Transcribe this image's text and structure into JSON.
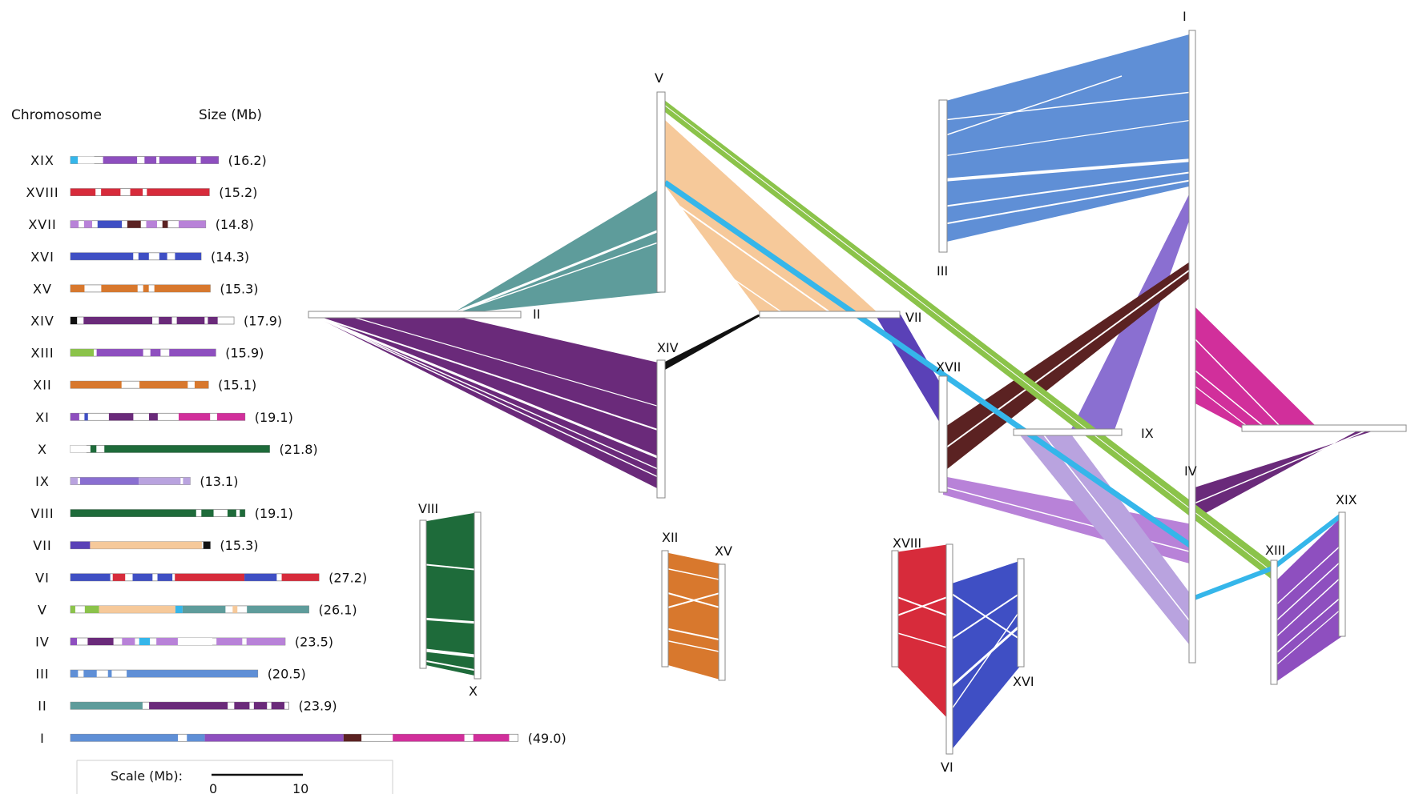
{
  "legend": {
    "header_chromosome": "Chromosome",
    "header_size": "Size (Mb)",
    "scale_label": "Scale (Mb):",
    "scale_min": "0",
    "scale_max": "10",
    "rows": [
      {
        "name": "XIX",
        "size": "(16.2)",
        "mb": 16.2,
        "segments": [
          [
            "#35b6ea",
            0,
            0.05
          ],
          [
            "#ffffff",
            0.05,
            0.16
          ],
          [
            "#8e4fbf",
            0.22,
            0.45
          ],
          [
            "#8e4fbf",
            0.5,
            0.58
          ],
          [
            "#8e4fbf",
            0.6,
            0.85
          ],
          [
            "#8e4fbf",
            0.88,
            1.0
          ]
        ]
      },
      {
        "name": "XVIII",
        "size": "(15.2)",
        "mb": 15.2,
        "segments": [
          [
            "#d72b3b",
            0,
            0.18
          ],
          [
            "#d72b3b",
            0.22,
            0.36
          ],
          [
            "#d72b3b",
            0.43,
            0.52
          ],
          [
            "#d72b3b",
            0.55,
            1.0
          ]
        ]
      },
      {
        "name": "XVII",
        "size": "(14.8)",
        "mb": 14.8,
        "segments": [
          [
            "#b882d8",
            0,
            0.06
          ],
          [
            "#b882d8",
            0.1,
            0.16
          ],
          [
            "#3f4fc4",
            0.2,
            0.38
          ],
          [
            "#5b2222",
            0.42,
            0.52
          ],
          [
            "#b882d8",
            0.56,
            0.64
          ],
          [
            "#5b2222",
            0.68,
            0.72
          ],
          [
            "#b882d8",
            0.8,
            1.0
          ]
        ]
      },
      {
        "name": "XVI",
        "size": "(14.3)",
        "mb": 14.3,
        "segments": [
          [
            "#3f4fc4",
            0,
            0.48
          ],
          [
            "#3f4fc4",
            0.52,
            0.6
          ],
          [
            "#3f4fc4",
            0.68,
            0.74
          ],
          [
            "#3f4fc4",
            0.8,
            1.0
          ]
        ]
      },
      {
        "name": "XV",
        "size": "(15.3)",
        "mb": 15.3,
        "segments": [
          [
            "#d8782d",
            0,
            0.1
          ],
          [
            "#d8782d",
            0.22,
            0.48
          ],
          [
            "#d8782d",
            0.52,
            0.56
          ],
          [
            "#d8782d",
            0.6,
            1.0
          ]
        ]
      },
      {
        "name": "XIV",
        "size": "(17.9)",
        "mb": 17.9,
        "segments": [
          [
            "#111111",
            0,
            0.04
          ],
          [
            "#6a2a7a",
            0.08,
            0.5
          ],
          [
            "#6a2a7a",
            0.54,
            0.62
          ],
          [
            "#6a2a7a",
            0.65,
            0.82
          ],
          [
            "#6a2a7a",
            0.84,
            0.9
          ]
        ]
      },
      {
        "name": "XIII",
        "size": "(15.9)",
        "mb": 15.9,
        "segments": [
          [
            "#8bc34a",
            0,
            0.16
          ],
          [
            "#8e4fbf",
            0.18,
            0.5
          ],
          [
            "#8e4fbf",
            0.55,
            0.62
          ],
          [
            "#8e4fbf",
            0.68,
            1.0
          ]
        ]
      },
      {
        "name": "XII",
        "size": "(15.1)",
        "mb": 15.1,
        "segments": [
          [
            "#d8782d",
            0,
            0.37
          ],
          [
            "#d8782d",
            0.5,
            0.85
          ],
          [
            "#d8782d",
            0.9,
            1.0
          ]
        ]
      },
      {
        "name": "XI",
        "size": "(19.1)",
        "mb": 19.1,
        "segments": [
          [
            "#8e4fbf",
            0,
            0.05
          ],
          [
            "#3f4fc4",
            0.08,
            0.1
          ],
          [
            "#6a2a7a",
            0.22,
            0.36
          ],
          [
            "#6a2a7a",
            0.45,
            0.5
          ],
          [
            "#d12f9b",
            0.62,
            0.8
          ],
          [
            "#d12f9b",
            0.84,
            1.0
          ]
        ]
      },
      {
        "name": "X",
        "size": "(21.8)",
        "mb": 21.8,
        "segments": [
          [
            "#ffffff",
            0,
            0.08
          ],
          [
            "#1e6b3a",
            0.1,
            0.13
          ],
          [
            "#1e6b3a",
            0.17,
            1.0
          ]
        ]
      },
      {
        "name": "IX",
        "size": "(13.1)",
        "mb": 13.1,
        "segments": [
          [
            "#b9a3df",
            0,
            0.06
          ],
          [
            "#8a6fd1",
            0.08,
            0.57
          ],
          [
            "#b9a3df",
            0.57,
            0.92
          ],
          [
            "#b9a3df",
            0.94,
            1.0
          ]
        ]
      },
      {
        "name": "VIII",
        "size": "(19.1)",
        "mb": 19.1,
        "segments": [
          [
            "#1e6b3a",
            0,
            0.72
          ],
          [
            "#1e6b3a",
            0.75,
            0.82
          ],
          [
            "#1e6b3a",
            0.9,
            0.95
          ],
          [
            "#1e6b3a",
            0.97,
            1.0
          ]
        ]
      },
      {
        "name": "VII",
        "size": "(15.3)",
        "mb": 15.3,
        "segments": [
          [
            "#5a41b7",
            0,
            0.14
          ],
          [
            "#f6c99a",
            0.14,
            0.94
          ],
          [
            "#111111",
            0.95,
            1.0
          ]
        ]
      },
      {
        "name": "VI",
        "size": "(27.2)",
        "mb": 27.2,
        "segments": [
          [
            "#3f4fc4",
            0,
            0.16
          ],
          [
            "#d72b3b",
            0.17,
            0.22
          ],
          [
            "#3f4fc4",
            0.25,
            0.33
          ],
          [
            "#3f4fc4",
            0.35,
            0.41
          ],
          [
            "#d72b3b",
            0.42,
            0.7
          ],
          [
            "#3f4fc4",
            0.7,
            0.83
          ],
          [
            "#d72b3b",
            0.85,
            1.0
          ]
        ]
      },
      {
        "name": "V",
        "size": "(26.1)",
        "mb": 26.1,
        "segments": [
          [
            "#8bc34a",
            0,
            0.02
          ],
          [
            "#8bc34a",
            0.06,
            0.12
          ],
          [
            "#f6c99a",
            0.12,
            0.44
          ],
          [
            "#35b6ea",
            0.44,
            0.47
          ],
          [
            "#5e9c9b",
            0.47,
            0.65
          ],
          [
            "#f6c99a",
            0.68,
            0.7
          ],
          [
            "#5e9c9b",
            0.74,
            1.0
          ]
        ]
      },
      {
        "name": "IV",
        "size": "(23.5)",
        "mb": 23.5,
        "segments": [
          [
            "#8e4fbf",
            0,
            0.03
          ],
          [
            "#6a2a7a",
            0.08,
            0.2
          ],
          [
            "#b882d8",
            0.24,
            0.3
          ],
          [
            "#35b6ea",
            0.32,
            0.37
          ],
          [
            "#b882d8",
            0.4,
            0.5
          ],
          [
            "#ffffff",
            0.5,
            0.66
          ],
          [
            "#b882d8",
            0.68,
            0.8
          ],
          [
            "#b882d8",
            0.82,
            1.0
          ]
        ]
      },
      {
        "name": "III",
        "size": "(20.5)",
        "mb": 20.5,
        "segments": [
          [
            "#5f8fd6",
            0,
            0.04
          ],
          [
            "#5f8fd6",
            0.07,
            0.14
          ],
          [
            "#5f8fd6",
            0.2,
            0.22
          ],
          [
            "#5f8fd6",
            0.3,
            1.0
          ]
        ]
      },
      {
        "name": "II",
        "size": "(23.9)",
        "mb": 23.9,
        "segments": [
          [
            "#5e9c9b",
            0,
            0.33
          ],
          [
            "#6a2a7a",
            0.36,
            0.72
          ],
          [
            "#6a2a7a",
            0.75,
            0.82
          ],
          [
            "#6a2a7a",
            0.84,
            0.9
          ],
          [
            "#6a2a7a",
            0.92,
            0.98
          ]
        ]
      },
      {
        "name": "I",
        "size": "(49.0)",
        "mb": 49.0,
        "segments": [
          [
            "#5f8fd6",
            0,
            0.24
          ],
          [
            "#5f8fd6",
            0.26,
            0.3
          ],
          [
            "#8e4fbf",
            0.3,
            0.61
          ],
          [
            "#5b2222",
            0.61,
            0.65
          ],
          [
            "#d12f9b",
            0.72,
            0.88
          ],
          [
            "#d12f9b",
            0.9,
            0.98
          ]
        ]
      }
    ]
  },
  "chromosome_labels": [
    "I",
    "II",
    "III",
    "V",
    "VII",
    "XIV",
    "XVII",
    "IX",
    "IV",
    "XIII",
    "XIX",
    "VIII",
    "X",
    "XII",
    "XV",
    "XVIII",
    "XVI",
    "VI"
  ],
  "colors": {
    "III_blue": "#5f8fd6",
    "II_teal": "#5e9c9b",
    "XIV_purple": "#6a2a7a",
    "V_green": "#8bc34a",
    "V_peach": "#f6c99a",
    "XIX_cyan": "#35b6ea",
    "VII_violet": "#5a41b7",
    "IX_lavender": "#8a6fd1",
    "IX_light": "#b9a3df",
    "XVII_lilac": "#b882d8",
    "XVII_brown": "#5b2222",
    "XI_magenta": "#d12f9b",
    "XIII_purple": "#8e4fbf",
    "X_green": "#1e6b3a",
    "XII_orange": "#d8782d",
    "XVIII_red": "#d72b3b",
    "XVI_blue": "#3f4fc4"
  }
}
